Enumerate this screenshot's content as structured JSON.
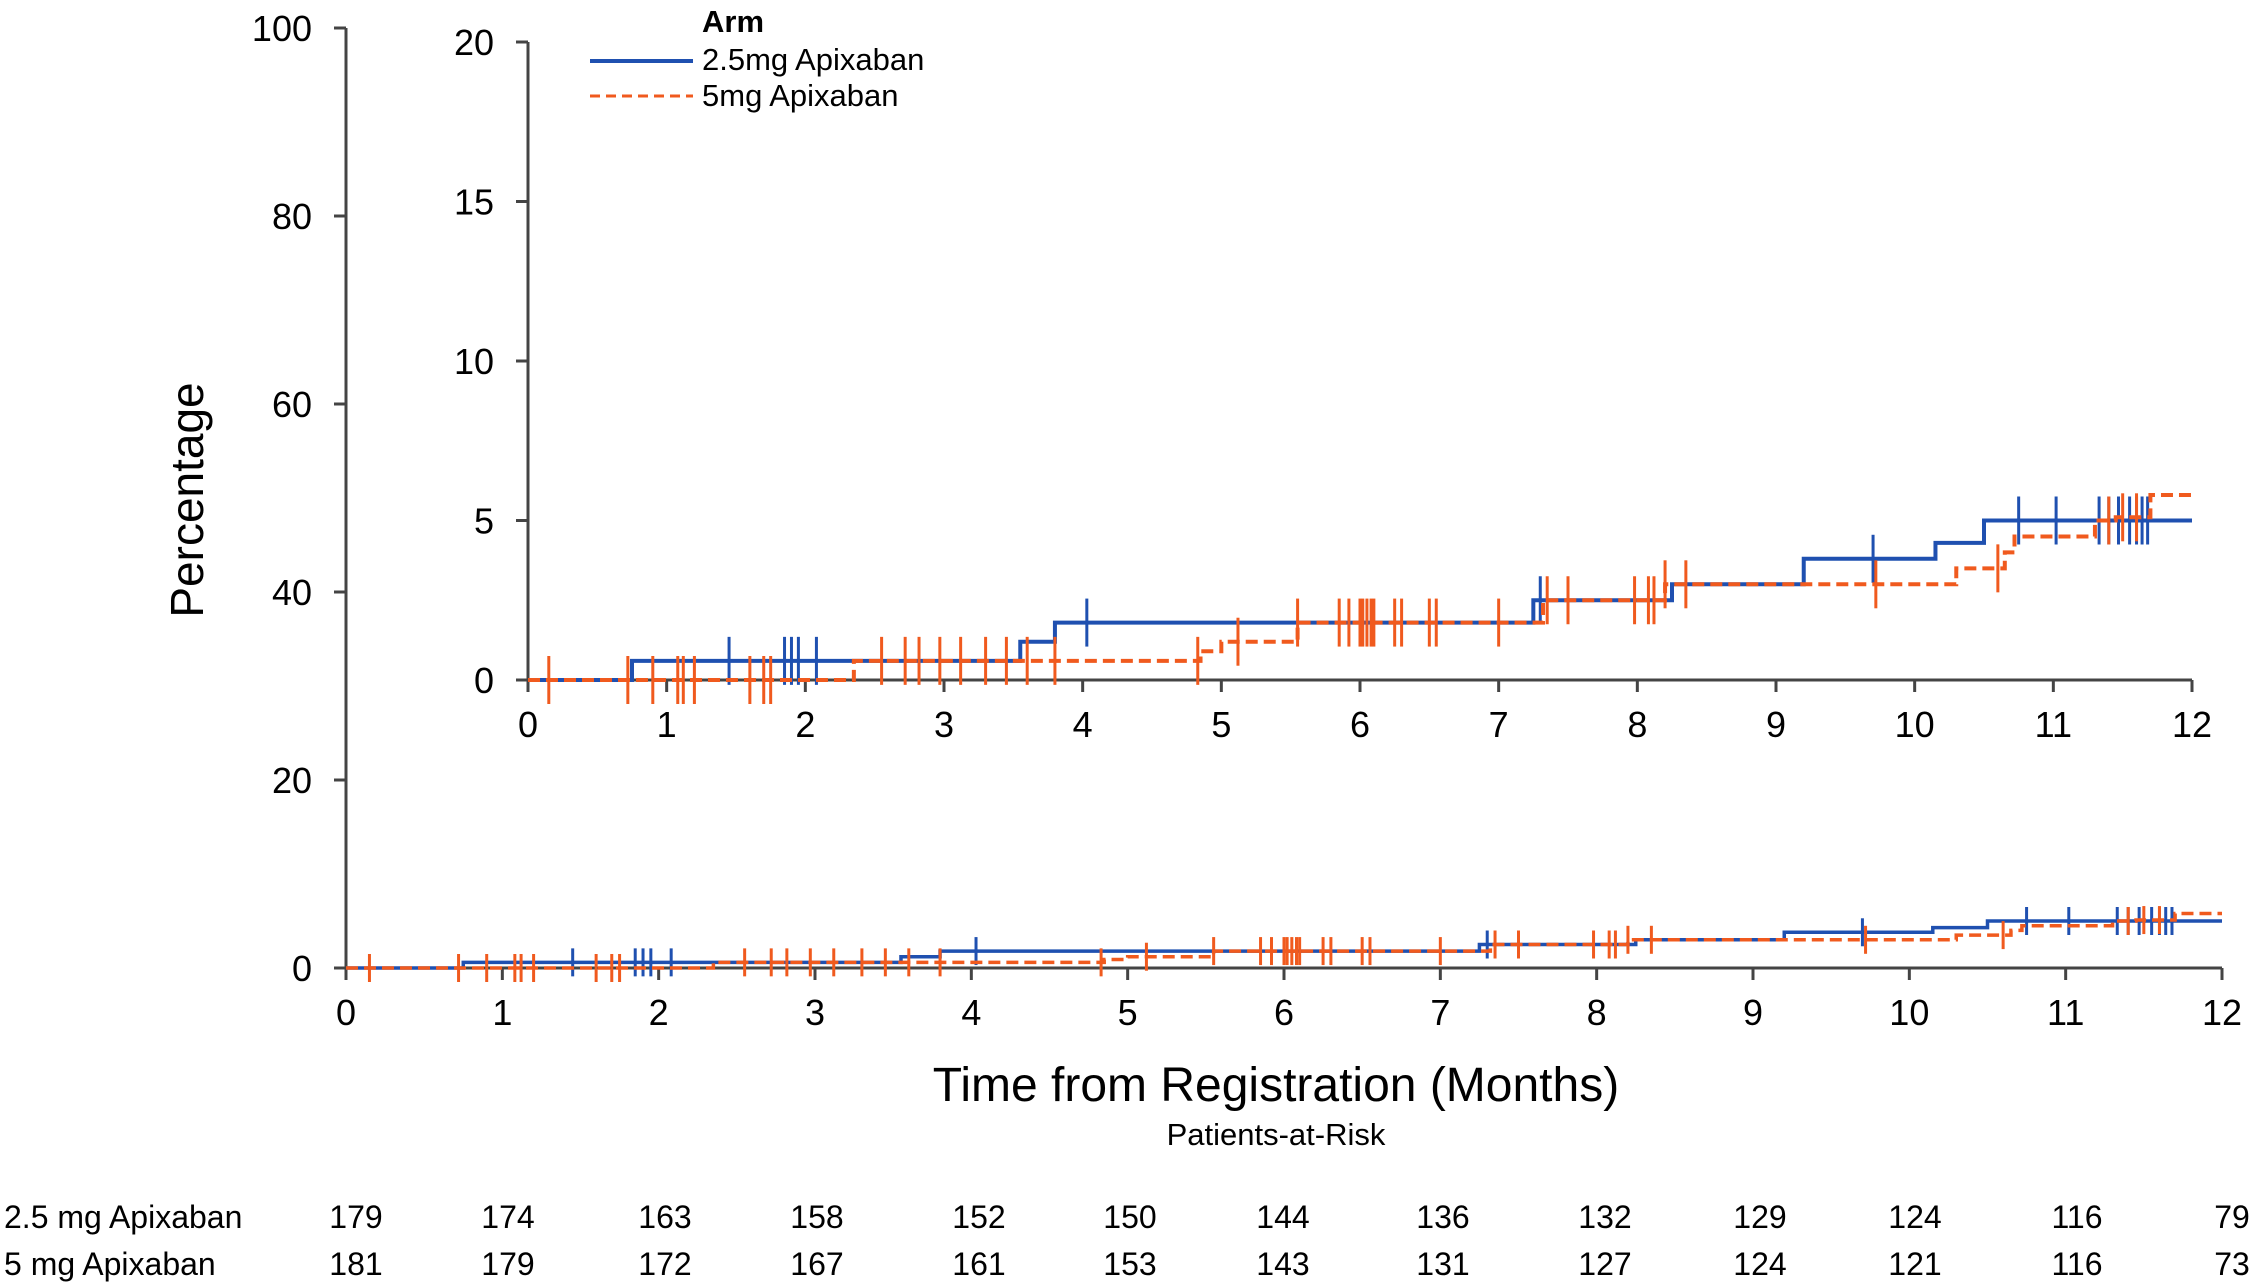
{
  "chart_data": {
    "type": "line",
    "subtype": "kaplan-meier cumulative incidence",
    "xlabel": "Time from Registration (Months)",
    "ylabel": "Percentage",
    "xlim": [
      0,
      12
    ],
    "ylim": [
      0,
      100
    ],
    "x_ticks": [
      "0",
      "1",
      "2",
      "3",
      "4",
      "5",
      "6",
      "7",
      "8",
      "9",
      "10",
      "11",
      "12"
    ],
    "y_ticks": [
      "0",
      "20",
      "40",
      "60",
      "80",
      "100"
    ],
    "inset": {
      "ylim": [
        0,
        20
      ],
      "x_ticks": [
        "0",
        "1",
        "2",
        "3",
        "4",
        "5",
        "6",
        "7",
        "8",
        "9",
        "10",
        "11",
        "12"
      ],
      "y_ticks": [
        "0",
        "5",
        "10",
        "15",
        "20"
      ]
    },
    "legend": {
      "title": "Arm",
      "position": "top-left of inset",
      "entries": [
        "2.5mg Apixaban",
        "5mg Apixaban"
      ]
    },
    "series": [
      {
        "name": "2.5mg Apixaban",
        "color": "#1f50b0",
        "style": "solid",
        "steps": [
          [
            0,
            0
          ],
          [
            0.75,
            0.6
          ],
          [
            3.55,
            1.2
          ],
          [
            3.8,
            1.8
          ],
          [
            7.25,
            2.5
          ],
          [
            8.25,
            3.0
          ],
          [
            9.2,
            3.8
          ],
          [
            10.15,
            4.3
          ],
          [
            10.5,
            5.0
          ],
          [
            12,
            5.0
          ]
        ],
        "censors": [
          1.45,
          1.85,
          1.9,
          1.95,
          2.08,
          4.03,
          7.3,
          9.7,
          10.75,
          11.02,
          11.33,
          11.4,
          11.47,
          11.55,
          11.6,
          11.64,
          11.68
        ]
      },
      {
        "name": "5mg Apixaban",
        "color": "#f05a1e",
        "style": "dashed",
        "steps": [
          [
            0,
            0
          ],
          [
            2.35,
            0.6
          ],
          [
            4.85,
            0.9
          ],
          [
            5.0,
            1.2
          ],
          [
            5.55,
            1.8
          ],
          [
            7.32,
            2.5
          ],
          [
            8.2,
            3.0
          ],
          [
            10.3,
            3.5
          ],
          [
            10.65,
            4.0
          ],
          [
            10.72,
            4.5
          ],
          [
            11.3,
            5.0
          ],
          [
            11.45,
            5.1
          ],
          [
            11.7,
            5.8
          ],
          [
            12,
            5.8
          ]
        ],
        "censors": [
          0.15,
          0.72,
          0.9,
          1.08,
          1.12,
          1.2,
          1.6,
          1.7,
          1.75,
          2.55,
          2.72,
          2.82,
          2.97,
          3.12,
          3.3,
          3.45,
          3.6,
          3.8,
          4.83,
          5.12,
          5.55,
          5.85,
          5.92,
          6.0,
          6.02,
          6.05,
          6.08,
          6.1,
          6.25,
          6.3,
          6.5,
          6.55,
          7.0,
          7.35,
          7.5,
          7.98,
          8.08,
          8.12,
          8.2,
          8.35,
          9.72,
          10.6,
          11.4,
          11.5,
          11.6
        ]
      }
    ],
    "patients_at_risk": {
      "title": "Patients-at-Risk",
      "timepoints": [
        0,
        1,
        2,
        3,
        4,
        5,
        6,
        7,
        8,
        9,
        10,
        11,
        12
      ],
      "rows": [
        {
          "label": "2.5 mg Apixaban",
          "values": [
            "179",
            "174",
            "163",
            "158",
            "152",
            "150",
            "144",
            "136",
            "132",
            "129",
            "124",
            "116",
            "79"
          ]
        },
        {
          "label": "5 mg Apixaban",
          "values": [
            "181",
            "179",
            "172",
            "167",
            "161",
            "153",
            "143",
            "131",
            "127",
            "124",
            "121",
            "116",
            "73"
          ]
        }
      ]
    }
  }
}
